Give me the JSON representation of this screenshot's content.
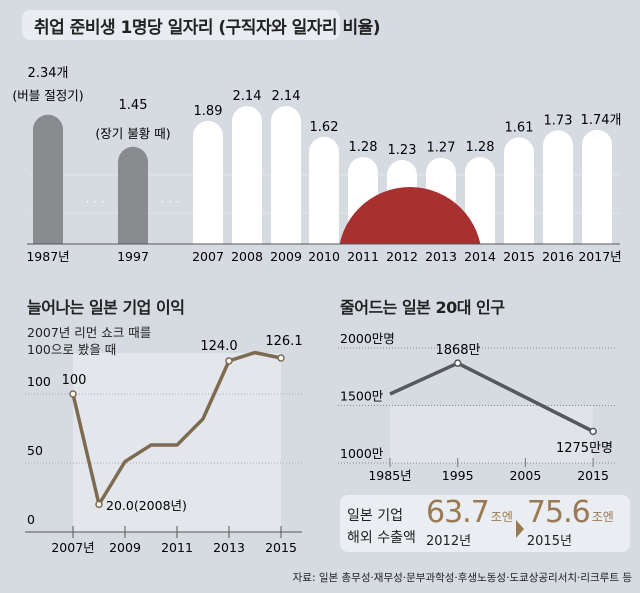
{
  "title": "취업 준비생 1명당 일자리 (구직자와 일자리 비율)",
  "chart_data": [
    {
      "type": "bar",
      "title": "취업 준비생 1명당 일자리 (구직자와 일자리 비율)",
      "categories": [
        "1987년",
        "1997",
        "2007",
        "2008",
        "2009",
        "2010",
        "2011",
        "2012",
        "2013",
        "2014",
        "2015",
        "2016",
        "2017년"
      ],
      "values": [
        2.34,
        1.45,
        1.89,
        2.14,
        2.14,
        1.62,
        1.28,
        1.23,
        1.27,
        1.28,
        1.61,
        1.73,
        1.74
      ],
      "value_labels": [
        "2.34개",
        "1.45",
        "1.89",
        "2.14",
        "2.14",
        "1.62",
        "1.28",
        "1.23",
        "1.27",
        "1.28",
        "1.61",
        "1.73",
        "1.74개"
      ],
      "annotations": [
        "(버블 절정기)",
        "(장기 불황 때)"
      ],
      "gap_marker": "· · ·",
      "colors": {
        "historic": "#8a8b8f",
        "recent": "#ffffff",
        "sun": "#a8302e"
      }
    },
    {
      "type": "line",
      "title": "늘어나는 일본 기업 이익",
      "subtitle": [
        "2007년 리먼 쇼크 때를",
        "100으로 봤을 때"
      ],
      "x": [
        2007,
        2008,
        2009,
        2010,
        2011,
        2012,
        2013,
        2014,
        2015
      ],
      "y": [
        100,
        20,
        51,
        63,
        63,
        82,
        124,
        130,
        126.1
      ],
      "ylim": [
        0,
        130
      ],
      "yticks": [
        "0",
        "50",
        "100"
      ],
      "xtick_labels": [
        "2007년",
        "2009",
        "2011",
        "2013",
        "2015"
      ],
      "data_labels": {
        "2007": "100",
        "2008": "20.0(2008년)",
        "2013": "124.0",
        "2015": "126.1"
      },
      "color": "#7d6a4f"
    },
    {
      "type": "line",
      "title": "줄어드는 일본 20대 인구",
      "x": [
        1985,
        1995,
        2015
      ],
      "y": [
        1600,
        1868,
        1275
      ],
      "ylim": [
        1000,
        2000
      ],
      "yticks": [
        "1000만",
        "1500만",
        "2000만명"
      ],
      "xtick_labels": [
        "1985년",
        "1995",
        "2005",
        "2015"
      ],
      "data_labels": {
        "1995": "1868만",
        "2015": "1275만명"
      },
      "color": "#55585c"
    }
  ],
  "export": {
    "label": [
      "일본 기업",
      "해외 수출액"
    ],
    "from": {
      "value": "63.7",
      "unit": "조엔",
      "year": "2012년"
    },
    "to": {
      "value": "75.6",
      "unit": "조엔",
      "year": "2015년"
    }
  },
  "source": "자료: 일본 총무성·재무성·문부과학성·후생노동성·도쿄상공리서치·리크루트 등"
}
